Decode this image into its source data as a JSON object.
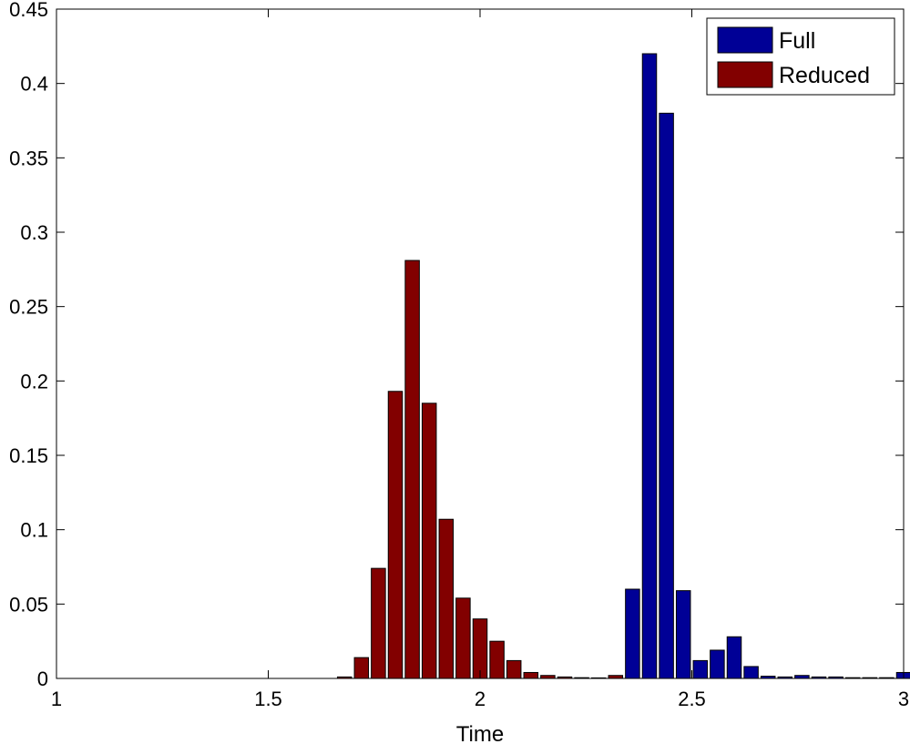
{
  "chart_data": {
    "type": "bar",
    "title": "",
    "xlabel": "Time",
    "ylabel": "",
    "xlim": [
      1,
      3
    ],
    "ylim": [
      0,
      0.45
    ],
    "grid": false,
    "legend_position": "top-right",
    "x_ticks": [
      1,
      1.5,
      2,
      2.5,
      3
    ],
    "x_tick_labels": [
      "1",
      "1.5",
      "2",
      "2.5",
      "3"
    ],
    "y_ticks": [
      0,
      0.05,
      0.1,
      0.15,
      0.2,
      0.25,
      0.3,
      0.35,
      0.4,
      0.45
    ],
    "y_tick_labels": [
      "0",
      "0.05",
      "0.1",
      "0.15",
      "0.2",
      "0.25",
      "0.3",
      "0.35",
      "0.4",
      "0.45"
    ],
    "series": [
      {
        "name": "Full",
        "color": "#000096",
        "x": [
          2.36,
          2.4,
          2.44,
          2.48,
          2.52,
          2.56,
          2.6,
          2.64,
          2.68,
          2.72,
          2.76,
          2.8,
          2.84,
          2.88,
          2.92,
          2.96,
          3.0
        ],
        "values": [
          0.06,
          0.42,
          0.38,
          0.059,
          0.012,
          0.019,
          0.028,
          0.008,
          0.0015,
          0.001,
          0.002,
          0.001,
          0.001,
          0.0005,
          0.0005,
          0.0005,
          0.004
        ]
      },
      {
        "name": "Reduced",
        "color": "#820000",
        "x": [
          1.68,
          1.72,
          1.76,
          1.8,
          1.84,
          1.88,
          1.92,
          1.96,
          2.0,
          2.04,
          2.08,
          2.12,
          2.16,
          2.2,
          2.24,
          2.28,
          2.32
        ],
        "values": [
          0.001,
          0.014,
          0.074,
          0.193,
          0.281,
          0.185,
          0.107,
          0.054,
          0.04,
          0.025,
          0.012,
          0.004,
          0.002,
          0.001,
          0.0005,
          0.0003,
          0.002
        ]
      }
    ]
  }
}
